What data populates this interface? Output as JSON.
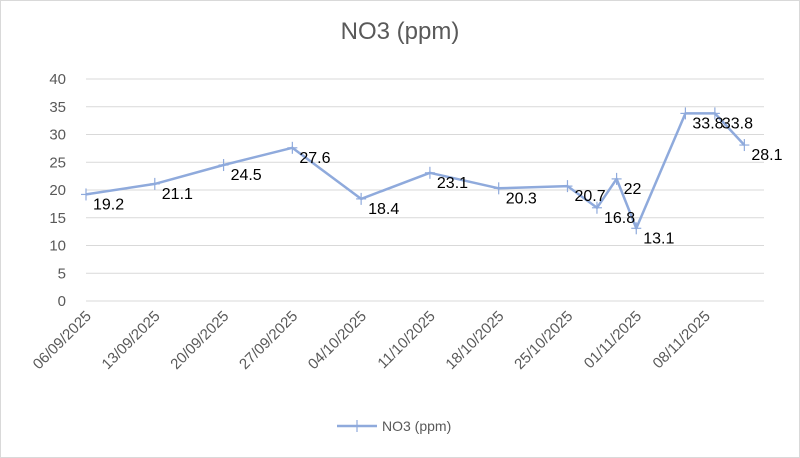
{
  "chart_data": {
    "type": "line",
    "title": "NO3 (ppm)",
    "xlabel": "",
    "ylabel": "",
    "ylim": [
      0,
      40
    ],
    "yticks": [
      0,
      5,
      10,
      15,
      20,
      25,
      30,
      35,
      40
    ],
    "x_axis_type": "date",
    "x_range": [
      "06/09/2025",
      "14/11/2025"
    ],
    "xtick_labels": [
      "06/09/2025",
      "13/09/2025",
      "20/09/2025",
      "27/09/2025",
      "04/10/2025",
      "11/10/2025",
      "18/10/2025",
      "25/10/2025",
      "01/11/2025",
      "08/11/2025"
    ],
    "grid": true,
    "legend": "bottom",
    "series": [
      {
        "name": "NO3 (ppm)",
        "color": "#8faadc",
        "points": [
          {
            "x": "06/09/2025",
            "y": 19.2,
            "label": "19.2"
          },
          {
            "x": "13/09/2025",
            "y": 21.1,
            "label": "21.1"
          },
          {
            "x": "20/09/2025",
            "y": 24.5,
            "label": "24.5"
          },
          {
            "x": "27/09/2025",
            "y": 27.6,
            "label": "27.6"
          },
          {
            "x": "04/10/2025",
            "y": 18.4,
            "label": "18.4"
          },
          {
            "x": "11/10/2025",
            "y": 23.1,
            "label": "23.1"
          },
          {
            "x": "18/10/2025",
            "y": 20.3,
            "label": "20.3"
          },
          {
            "x": "25/10/2025",
            "y": 20.7,
            "label": "20.7"
          },
          {
            "x": "28/10/2025",
            "y": 16.8,
            "label": "16.8"
          },
          {
            "x": "30/10/2025",
            "y": 22,
            "label": "22"
          },
          {
            "x": "01/11/2025",
            "y": 13.1,
            "label": "13.1"
          },
          {
            "x": "06/11/2025",
            "y": 33.8,
            "label": "33.8"
          },
          {
            "x": "09/11/2025",
            "y": 33.8,
            "label": "33.8"
          },
          {
            "x": "12/11/2025",
            "y": 28.1,
            "label": "28.1"
          }
        ]
      }
    ]
  }
}
